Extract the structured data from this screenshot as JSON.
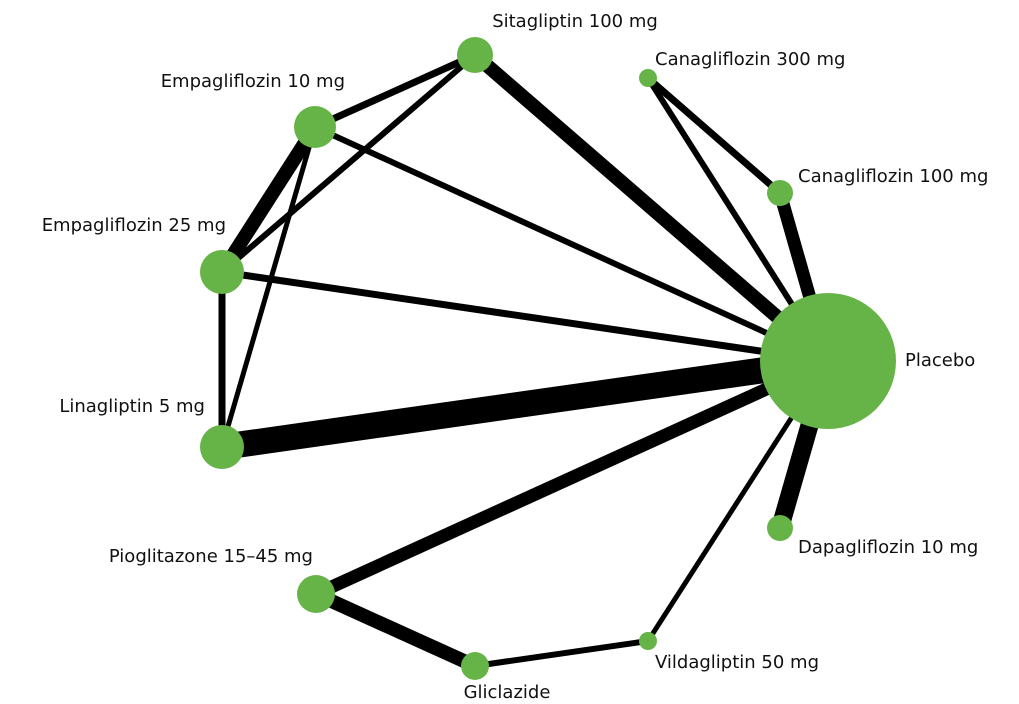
{
  "nodes": [
    {
      "label": "Sitagliptin 100 mg"
    },
    {
      "label": "Canagliflozin 300 mg"
    },
    {
      "label": "Empagliflozin 10 mg"
    },
    {
      "label": "Canagliflozin 100 mg"
    },
    {
      "label": "Empagliflozin 25 mg"
    },
    {
      "label": "Placebo"
    },
    {
      "label": "Linagliptin 5 mg"
    },
    {
      "label": "Dapagliflozin 10 mg"
    },
    {
      "label": "Pioglitazone 15–45 mg"
    },
    {
      "label": "Vildagliptin 50 mg"
    },
    {
      "label": "Gliclazide"
    }
  ]
}
